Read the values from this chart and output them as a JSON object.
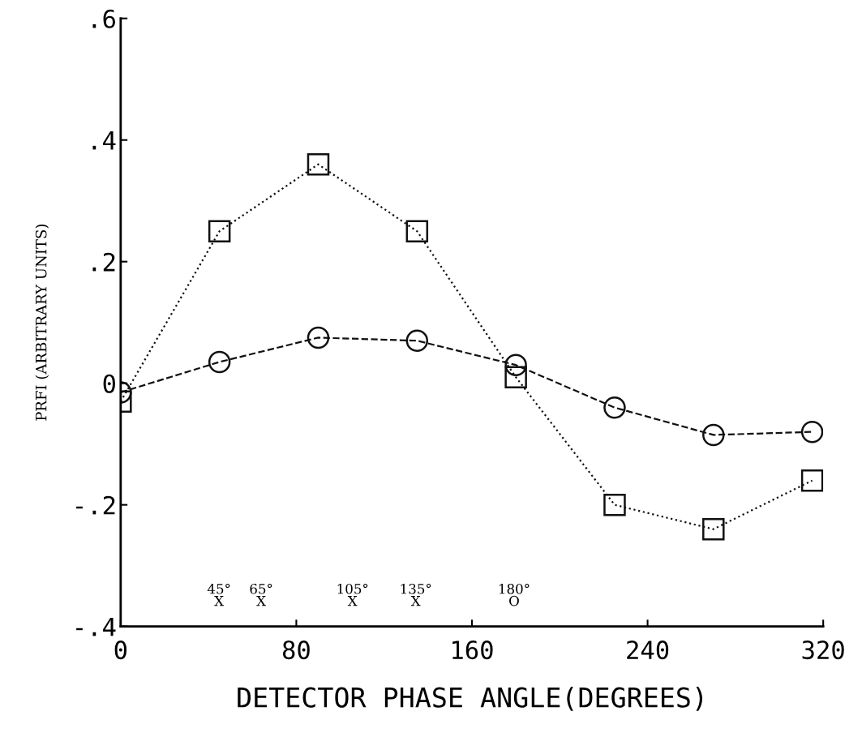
{
  "chart_data": {
    "type": "line",
    "xlabel": "DETECTOR PHASE ANGLE(DEGREES)",
    "ylabel": "PRFI (ARBITRARY UNITS)",
    "x": [
      0,
      45,
      90,
      135,
      180,
      225,
      270,
      315
    ],
    "series": [
      {
        "color": "#111111",
        "marker": "square",
        "line_style": "dotted",
        "values": [
          -0.03,
          0.25,
          0.36,
          0.25,
          0.01,
          -0.2,
          -0.24,
          -0.16
        ]
      },
      {
        "color": "#111111",
        "marker": "circle",
        "line_style": "dashed",
        "values": [
          -0.015,
          0.035,
          0.075,
          0.07,
          0.03,
          -0.04,
          -0.085,
          -0.08
        ]
      }
    ],
    "xlim": [
      0,
      320
    ],
    "xticks": [
      {
        "value": 0,
        "label": "0"
      },
      {
        "value": 80,
        "label": "80"
      },
      {
        "value": 160,
        "label": "160"
      },
      {
        "value": 240,
        "label": "240"
      },
      {
        "value": 320,
        "label": "320"
      }
    ],
    "ylim": [
      -0.4,
      0.6
    ],
    "yticks": [
      {
        "value": -0.4,
        "label": "-.4"
      },
      {
        "value": -0.2,
        "label": "-.2"
      },
      {
        "value": 0,
        "label": "0"
      },
      {
        "value": 0.2,
        "label": ".2"
      },
      {
        "value": 0.4,
        "label": ".4"
      },
      {
        "value": 0.6,
        "label": ".6"
      }
    ],
    "annotations": [
      "45°\nX",
      "65°\nX",
      "105°\nX",
      "135°\nX",
      "180°\nO"
    ],
    "grid": false,
    "legend": false
  }
}
